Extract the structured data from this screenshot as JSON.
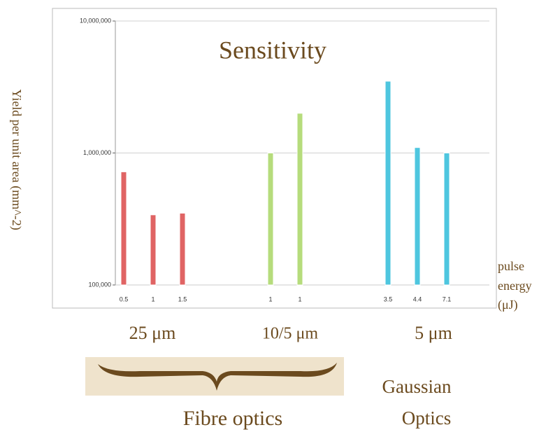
{
  "chart_data": {
    "type": "bar",
    "title": "Sensitivity",
    "y_label": "Yield per unit area (mm^-2)",
    "x_label_lines": [
      "pulse",
      "energy",
      "(μJ)"
    ],
    "categories": [
      "0.5",
      "1",
      "1.5",
      null,
      null,
      "1",
      "1",
      null,
      null,
      "3.5",
      "4.4",
      "7.1"
    ],
    "values": [
      720000,
      340000,
      350000,
      null,
      null,
      1000000,
      2000000,
      null,
      null,
      3500000,
      1100000,
      1000000
    ],
    "colors": [
      "#e06464",
      "#e06464",
      "#e06464",
      null,
      null,
      "#b6dc7c",
      "#b6dc7c",
      null,
      null,
      "#4ec6df",
      "#4ec6df",
      "#4ec6df"
    ],
    "log_scale": true,
    "grid": true,
    "ylim": [
      100000,
      10000000
    ],
    "yticks": [
      {
        "value": 100000,
        "label": "100,000"
      },
      {
        "value": 1000000,
        "label": "1,000,000"
      },
      {
        "value": 10000000,
        "label": "10,000,000"
      }
    ],
    "group_labels": [
      "25 μm",
      "10/5 μm",
      "5 μm"
    ],
    "annotations": [
      "Fibre optics",
      "Gaussian",
      "Optics"
    ]
  }
}
